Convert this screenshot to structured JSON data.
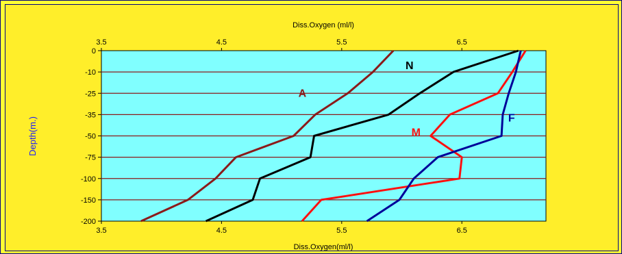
{
  "colors": {
    "frame_bg": "#ffff33",
    "plot_bg": "#80ffff",
    "grid": "#8b1a1a"
  },
  "chart_data": {
    "type": "line",
    "orientation": "depth-profile",
    "xlabel_top": "Diss.Oxygen (ml/l)",
    "xlabel_bottom": "Diss.Oxygen(ml/l)",
    "ylabel": "Depth(m.)",
    "xlim": [
      3.5,
      7.2
    ],
    "x_ticks": [
      "3.5",
      "4.5",
      "5.5",
      "6.5"
    ],
    "x_tick_values": [
      3.5,
      4.5,
      5.5,
      6.5
    ],
    "depth_categories": [
      "0",
      "-10",
      "-25",
      "-35",
      "-50",
      "-75",
      "-100",
      "-150",
      "-200"
    ],
    "grid": true,
    "series": [
      {
        "name": "A",
        "color": "#8b1a1a",
        "values": [
          5.93,
          5.76,
          5.55,
          5.28,
          5.1,
          4.62,
          4.45,
          4.22,
          3.83
        ]
      },
      {
        "name": "N",
        "color": "#000000",
        "values": [
          6.97,
          6.43,
          6.15,
          5.89,
          5.27,
          5.24,
          4.82,
          4.76,
          4.37
        ]
      },
      {
        "name": "M",
        "color": "#ff1010",
        "values": [
          7.03,
          6.92,
          6.8,
          6.4,
          6.24,
          6.5,
          6.48,
          5.33,
          5.17
        ]
      },
      {
        "name": "F",
        "color": "#000099",
        "values": [
          6.99,
          6.95,
          6.89,
          6.84,
          6.83,
          6.3,
          6.1,
          5.98,
          5.71
        ]
      }
    ]
  }
}
